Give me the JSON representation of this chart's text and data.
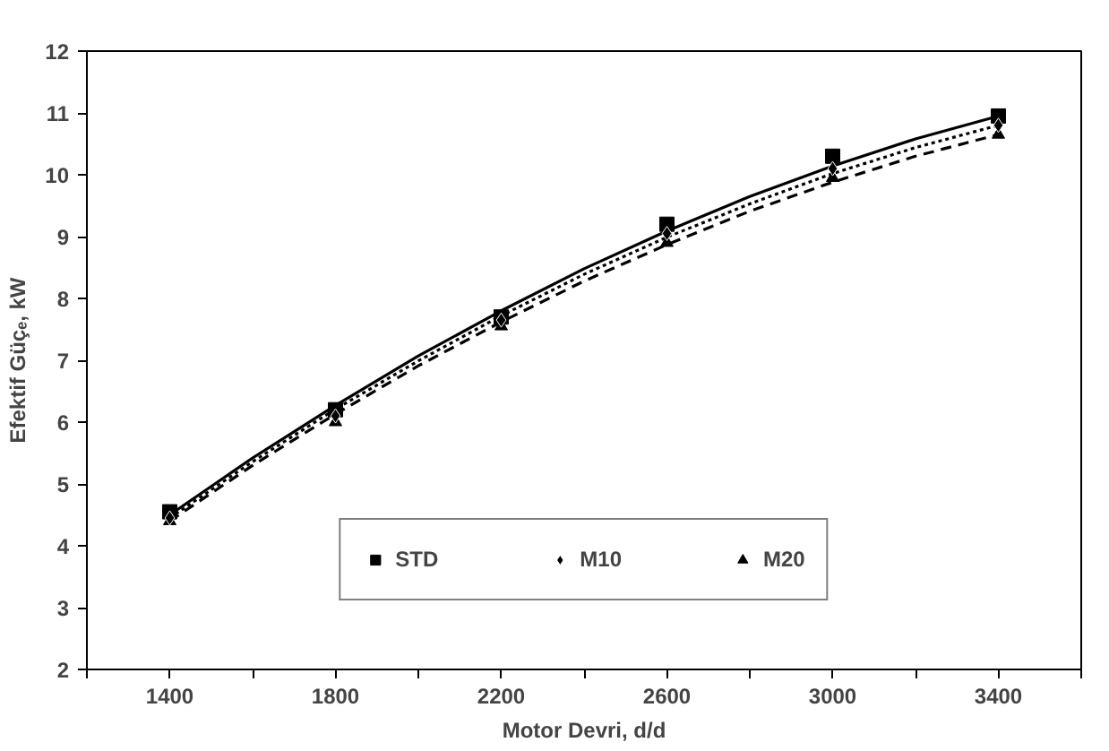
{
  "chart_data": {
    "type": "scatter",
    "xlabel": "Motor Devri, d/d",
    "ylabel": "Efektif Güçₑ, kW",
    "x": [
      1400,
      1800,
      2200,
      2600,
      3000,
      3400
    ],
    "xlim": [
      1200,
      3600
    ],
    "xticks": [
      {
        "value": 1200,
        "label": null
      },
      1400,
      {
        "value": 1600,
        "label": null
      },
      1800,
      {
        "value": 2000,
        "label": null
      },
      2200,
      {
        "value": 2400,
        "label": null
      },
      2600,
      {
        "value": 2800,
        "label": null
      },
      3000,
      {
        "value": 3200,
        "label": null
      },
      3400,
      {
        "value": 3600,
        "label": null
      }
    ],
    "ylim": [
      2,
      12
    ],
    "yticks": [
      2,
      3,
      4,
      5,
      6,
      7,
      8,
      9,
      10,
      11,
      12
    ],
    "grid": false,
    "legend": "bottom",
    "series": [
      {
        "name": "STD",
        "color": "#000000",
        "marker": "square",
        "values": [
          4.55,
          6.2,
          7.7,
          9.2,
          10.3,
          10.95
        ]
      },
      {
        "name": "M10",
        "color": "#000000",
        "marker": "diamond",
        "values": [
          4.45,
          6.1,
          7.65,
          9.05,
          10.1,
          10.8
        ]
      },
      {
        "name": "M20",
        "color": "#000000",
        "marker": "triangle",
        "values": [
          4.4,
          6.0,
          7.55,
          8.9,
          9.95,
          10.65
        ]
      },
      {
        "type": "line",
        "color": "#000000",
        "line_style": "solid",
        "x": [
          1400,
          1600,
          1800,
          2000,
          2200,
          2400,
          2600,
          2800,
          3000,
          3200,
          3400
        ],
        "values": [
          4.5,
          5.42,
          6.27,
          7.07,
          7.8,
          8.48,
          9.09,
          9.65,
          10.14,
          10.58,
          10.95
        ]
      },
      {
        "type": "line",
        "color": "#000000",
        "line_style": "dotted",
        "x": [
          1400,
          1600,
          1800,
          2000,
          2200,
          2400,
          2600,
          2800,
          3000,
          3200,
          3400
        ],
        "values": [
          4.45,
          5.36,
          6.21,
          6.99,
          7.72,
          8.39,
          8.99,
          9.53,
          10.02,
          10.44,
          10.8
        ]
      },
      {
        "type": "line",
        "color": "#000000",
        "line_style": "dashed",
        "x": [
          1400,
          1600,
          1800,
          2000,
          2200,
          2400,
          2600,
          2800,
          3000,
          3200,
          3400
        ],
        "values": [
          4.4,
          5.3,
          6.13,
          6.91,
          7.62,
          8.28,
          8.87,
          9.41,
          9.88,
          10.3,
          10.65
        ]
      }
    ]
  }
}
